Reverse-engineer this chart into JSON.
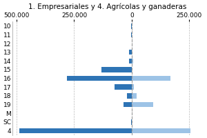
{
  "title": "1. Empresariales y 4. Agrícolas y ganaderas",
  "categories": [
    "10",
    "11",
    "12",
    "13",
    "14",
    "15",
    "16",
    "17",
    "18",
    "19",
    "M",
    "SC",
    "4"
  ],
  "series1": [
    -3000,
    -2000,
    0,
    -10000,
    -12000,
    -130000,
    -280000,
    -75000,
    -20000,
    -35000,
    0,
    -3000,
    -490000
  ],
  "series2": [
    0,
    0,
    0,
    0,
    8000,
    0,
    170000,
    10000,
    22000,
    95000,
    0,
    0,
    255000
  ],
  "color1": "#2E74B5",
  "color2": "#9DC3E6",
  "title_fontsize": 7.5,
  "tick_fontsize": 6.5,
  "xlim": [
    -520000,
    310000
  ],
  "xticks": [
    -500000,
    -250000,
    0,
    250000
  ],
  "xticklabels": [
    "500.000",
    "250.000",
    "0",
    "250.000"
  ],
  "grid_color": "#BBBBBB",
  "zero_line_color": "#999999",
  "background": "#FFFFFF"
}
